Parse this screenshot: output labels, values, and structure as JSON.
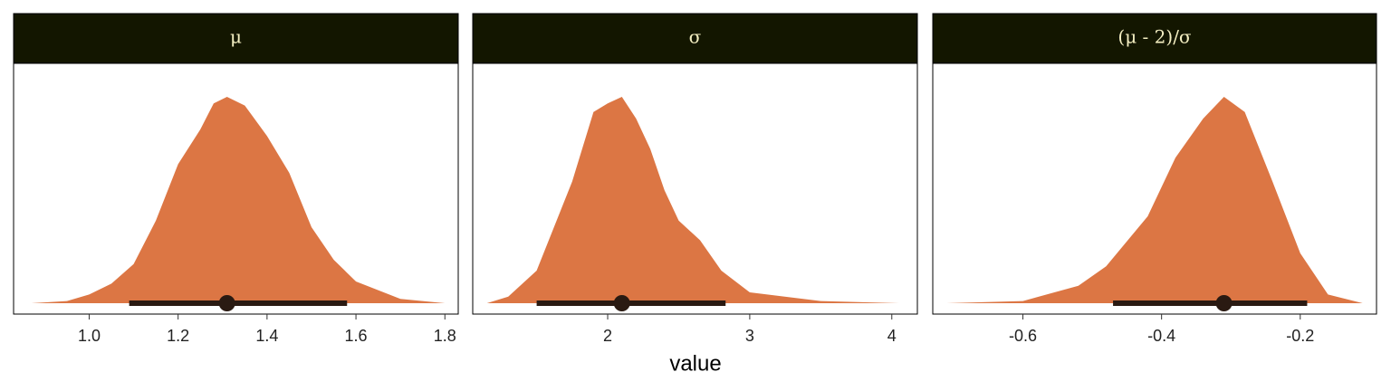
{
  "xlabel": "value",
  "chart_data": [
    {
      "type": "density",
      "title": "μ",
      "color": "#dc7644",
      "interval_color": "#2a1a12",
      "x": [
        0.87,
        0.95,
        1.0,
        1.05,
        1.1,
        1.15,
        1.2,
        1.25,
        1.28,
        1.31,
        1.35,
        1.4,
        1.45,
        1.5,
        1.55,
        1.6,
        1.7,
        1.8
      ],
      "values": [
        0,
        0.01,
        0.04,
        0.09,
        0.18,
        0.38,
        0.64,
        0.8,
        0.92,
        0.95,
        0.91,
        0.77,
        0.6,
        0.35,
        0.2,
        0.1,
        0.02,
        0
      ],
      "point": 1.31,
      "interval": [
        1.09,
        1.58
      ],
      "xlim": [
        0.83,
        1.83
      ],
      "ylim": [
        0,
        1
      ],
      "xticks": [
        {
          "value": 1.0,
          "label": "1.0"
        },
        1.2,
        1.4,
        1.6,
        1.8
      ]
    },
    {
      "type": "density",
      "title": "σ",
      "color": "#dc7644",
      "interval_color": "#2a1a12",
      "x": [
        1.15,
        1.3,
        1.5,
        1.75,
        1.9,
        2.0,
        2.1,
        2.2,
        2.3,
        2.4,
        2.5,
        2.65,
        2.8,
        3.0,
        3.5,
        4.05
      ],
      "values": [
        0,
        0.03,
        0.15,
        0.56,
        0.88,
        0.92,
        0.95,
        0.85,
        0.71,
        0.52,
        0.38,
        0.29,
        0.15,
        0.05,
        0.01,
        0
      ],
      "point": 2.1,
      "interval": [
        1.5,
        2.83
      ],
      "xlim": [
        1.05,
        4.18
      ],
      "ylim": [
        0,
        1
      ],
      "xticks": [
        2,
        3,
        4
      ]
    },
    {
      "type": "density",
      "title": "(μ - 2)/σ",
      "color": "#dc7644",
      "interval_color": "#2a1a12",
      "x": [
        -0.71,
        -0.6,
        -0.52,
        -0.48,
        -0.42,
        -0.38,
        -0.34,
        -0.31,
        -0.28,
        -0.24,
        -0.2,
        -0.16,
        -0.11
      ],
      "values": [
        0,
        0.01,
        0.08,
        0.17,
        0.4,
        0.67,
        0.85,
        0.95,
        0.88,
        0.56,
        0.23,
        0.04,
        0
      ],
      "point": -0.31,
      "interval": [
        -0.47,
        -0.19
      ],
      "xlim": [
        -0.73,
        -0.09
      ],
      "ylim": [
        0,
        1
      ],
      "xticks": [
        -0.6,
        -0.4,
        -0.2
      ]
    }
  ]
}
